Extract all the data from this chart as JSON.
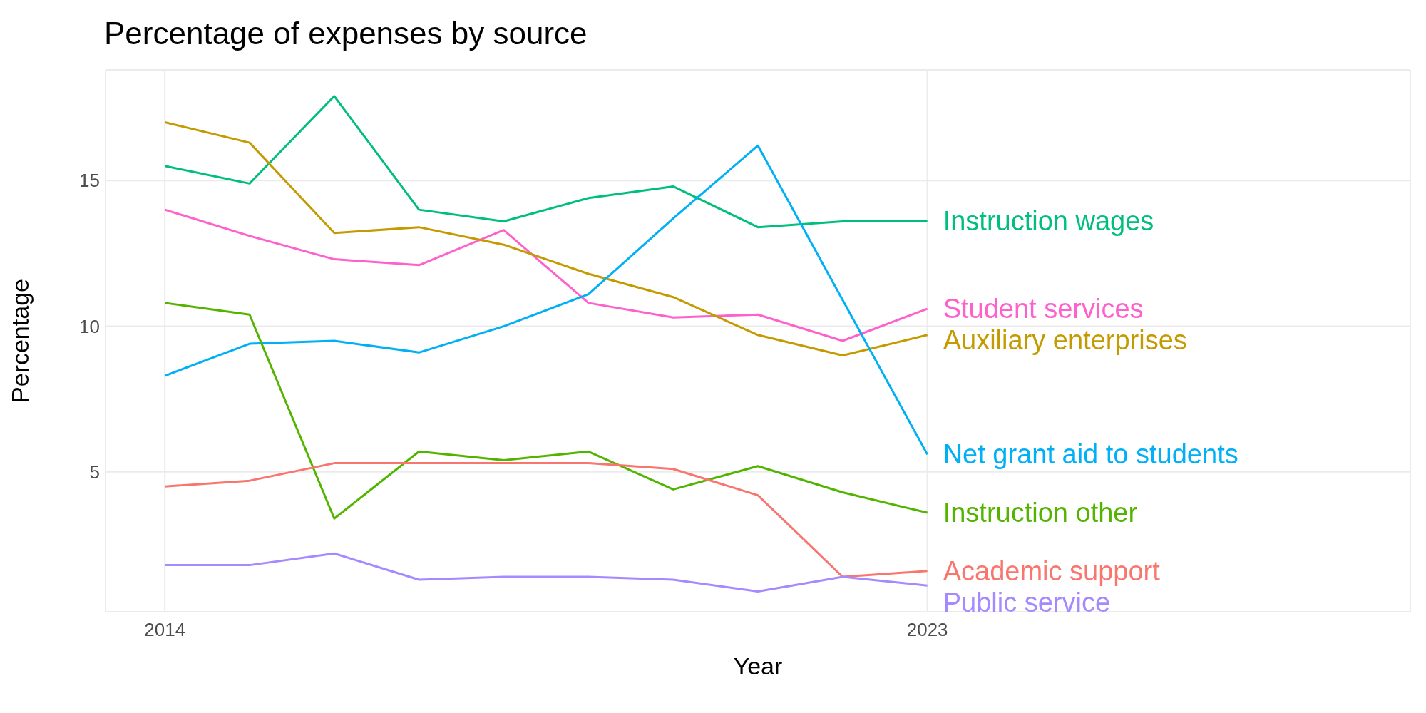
{
  "chart_data": {
    "type": "line",
    "title": "Percentage of expenses by source",
    "xlabel": "Year",
    "ylabel": "Percentage",
    "x": [
      2014,
      2015,
      2016,
      2017,
      2018,
      2019,
      2020,
      2021,
      2022,
      2023
    ],
    "xlim": [
      2013.3,
      2028.7
    ],
    "xticks": [
      2014,
      2023
    ],
    "ylim": [
      0.2,
      18.8
    ],
    "yticks": [
      5,
      10,
      15
    ],
    "grid": true,
    "legend": false,
    "marker": "none",
    "line_style": "solid",
    "series": [
      {
        "name": "Instruction wages",
        "color": "#00bf7d",
        "values": [
          15.5,
          14.9,
          17.9,
          14.0,
          13.6,
          14.4,
          14.8,
          13.4,
          13.6,
          13.6
        ]
      },
      {
        "name": "Student services",
        "color": "#ff61cc",
        "values": [
          14.0,
          13.1,
          12.3,
          12.1,
          13.3,
          10.8,
          10.3,
          10.4,
          9.5,
          10.6
        ]
      },
      {
        "name": "Auxiliary enterprises",
        "color": "#c49a00",
        "values": [
          17.0,
          16.3,
          13.2,
          13.4,
          12.8,
          11.8,
          11.0,
          9.7,
          9.0,
          9.7
        ]
      },
      {
        "name": "Net grant aid to students",
        "color": "#00b0f6",
        "values": [
          8.3,
          9.4,
          9.5,
          9.1,
          10.0,
          11.1,
          13.7,
          16.2,
          10.9,
          5.6
        ]
      },
      {
        "name": "Instruction other",
        "color": "#53b400",
        "values": [
          10.8,
          10.4,
          3.4,
          5.7,
          5.4,
          5.7,
          4.4,
          5.2,
          4.3,
          3.6
        ]
      },
      {
        "name": "Academic support",
        "color": "#f8766d",
        "values": [
          4.5,
          4.7,
          5.3,
          5.3,
          5.3,
          5.3,
          5.1,
          4.2,
          1.4,
          1.6
        ]
      },
      {
        "name": "Public service",
        "color": "#a58aff",
        "values": [
          1.8,
          1.8,
          2.2,
          1.3,
          1.4,
          1.4,
          1.3,
          0.9,
          1.4,
          1.1
        ]
      }
    ]
  }
}
